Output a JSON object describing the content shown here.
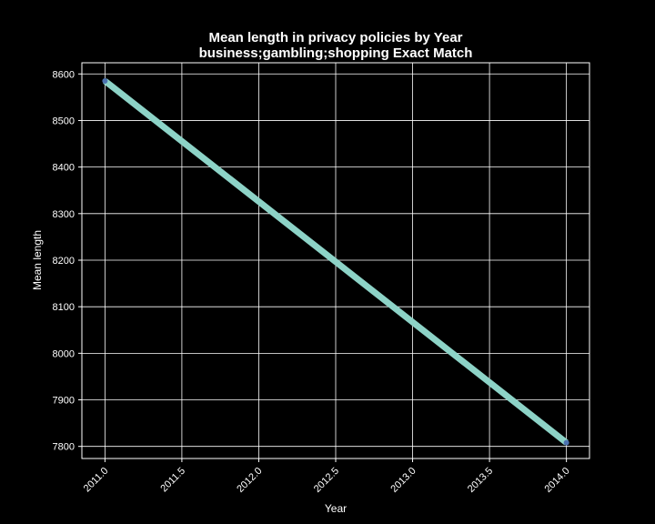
{
  "chart_data": {
    "type": "line",
    "title": "Mean length in privacy policies by Year",
    "subtitle": "business;gambling;shopping Exact Match",
    "xlabel": "Year",
    "ylabel": "Mean length",
    "x": [
      2011,
      2014
    ],
    "series": [
      {
        "values": [
          8585,
          7808
        ]
      }
    ],
    "xlim": [
      2010.85,
      2014.15
    ],
    "ylim": [
      7774,
      8624
    ],
    "xticks": [
      "2011.0",
      "2011.5",
      "2012.0",
      "2012.5",
      "2013.0",
      "2013.5",
      "2014.0"
    ],
    "yticks": [
      "7800",
      "7900",
      "8000",
      "8100",
      "8200",
      "8300",
      "8400",
      "8500",
      "8600"
    ],
    "grid": true,
    "background": "#000000",
    "line_color": "#8dd3c7",
    "marker_color": "#4c72b0",
    "grid_color": "#ffffff",
    "text_color": "#ffffff"
  }
}
